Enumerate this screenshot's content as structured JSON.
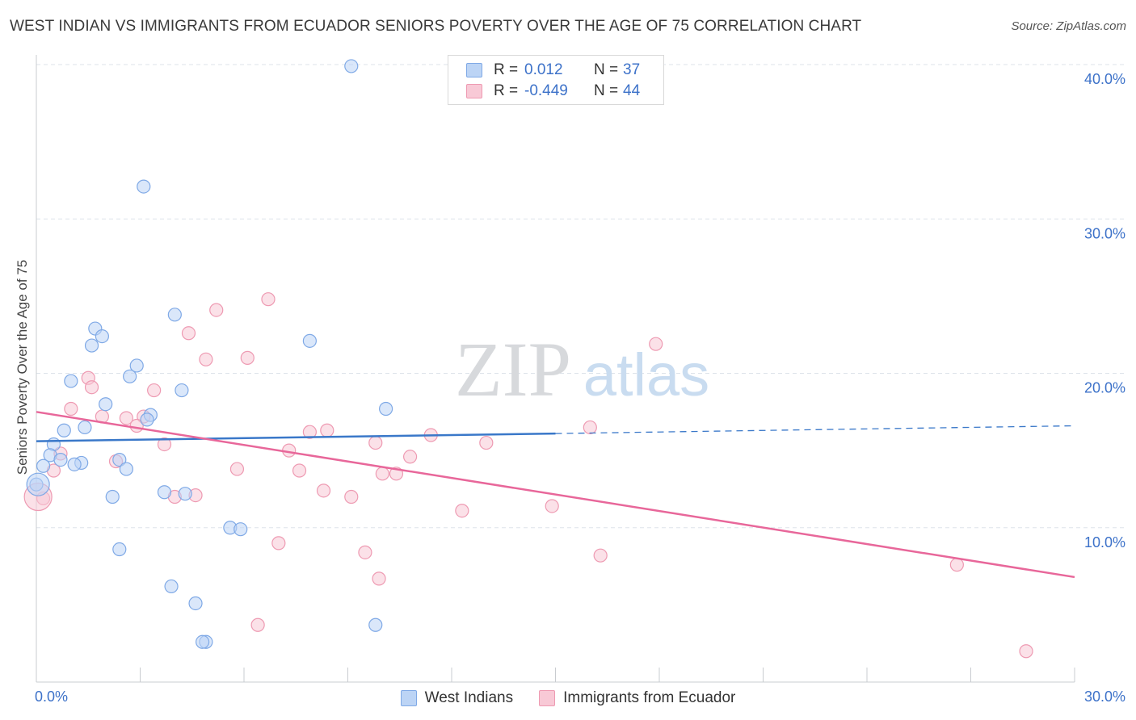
{
  "header": {
    "title": "WEST INDIAN VS IMMIGRANTS FROM ECUADOR SENIORS POVERTY OVER THE AGE OF 75 CORRELATION CHART",
    "source": "Source: ZipAtlas.com"
  },
  "watermark": {
    "zip": "ZIP",
    "atlas": "atlas"
  },
  "legend_top": {
    "r_label": "R =",
    "n_label": "N =",
    "rows": [
      {
        "r": "0.012",
        "n": "37"
      },
      {
        "r": "-0.449",
        "n": "44"
      }
    ]
  },
  "legend_bottom": {
    "items": [
      "West Indians",
      "Immigrants from Ecuador"
    ]
  },
  "colors": {
    "blue_fill": "#bcd4f5",
    "blue_stroke": "#7fa9e6",
    "blue_line": "#3a78c9",
    "pink_fill": "#f8c9d6",
    "pink_stroke": "#ee9ab2",
    "pink_line": "#e8679a",
    "tick_text": "#3d72c9",
    "grid": "#dde3ea"
  },
  "chart_data": {
    "type": "scatter",
    "title": "WEST INDIAN VS IMMIGRANTS FROM ECUADOR SENIORS POVERTY OVER THE AGE OF 75 CORRELATION CHART",
    "xlabel": "",
    "ylabel": "Seniors Poverty Over the Age of 75",
    "xlim": [
      0,
      30
    ],
    "ylim": [
      0,
      40
    ],
    "x_tick_labels": [
      "0.0%",
      "30.0%"
    ],
    "y_ticks": [
      10,
      20,
      30,
      40
    ],
    "y_tick_labels": [
      "10.0%",
      "20.0%",
      "30.0%",
      "40.0%"
    ],
    "series": [
      {
        "name": "West Indians",
        "r": 0.012,
        "n": 37,
        "trend": {
          "x": [
            0,
            15,
            30
          ],
          "y": [
            15.6,
            16.1,
            16.6
          ],
          "solid_until": 15
        },
        "points": [
          {
            "x": 9.1,
            "y": 39.9
          },
          {
            "x": 3.1,
            "y": 32.1
          },
          {
            "x": 4.0,
            "y": 23.8
          },
          {
            "x": 1.7,
            "y": 22.9
          },
          {
            "x": 1.9,
            "y": 22.4
          },
          {
            "x": 1.6,
            "y": 21.8
          },
          {
            "x": 7.9,
            "y": 22.1
          },
          {
            "x": 2.9,
            "y": 20.5
          },
          {
            "x": 2.7,
            "y": 19.8
          },
          {
            "x": 1.0,
            "y": 19.5
          },
          {
            "x": 4.2,
            "y": 18.9
          },
          {
            "x": 2.0,
            "y": 18.0
          },
          {
            "x": 10.1,
            "y": 17.7
          },
          {
            "x": 3.3,
            "y": 17.3
          },
          {
            "x": 3.2,
            "y": 17.0
          },
          {
            "x": 1.4,
            "y": 16.5
          },
          {
            "x": 0.8,
            "y": 16.3
          },
          {
            "x": 0.5,
            "y": 15.4
          },
          {
            "x": 0.4,
            "y": 14.7
          },
          {
            "x": 0.7,
            "y": 14.4
          },
          {
            "x": 1.3,
            "y": 14.2
          },
          {
            "x": 1.1,
            "y": 14.1
          },
          {
            "x": 2.4,
            "y": 14.4
          },
          {
            "x": 2.6,
            "y": 13.8
          },
          {
            "x": 0.2,
            "y": 14.0
          },
          {
            "x": 0.0,
            "y": 12.8
          },
          {
            "x": 3.7,
            "y": 12.3
          },
          {
            "x": 4.3,
            "y": 12.2
          },
          {
            "x": 2.2,
            "y": 12.0
          },
          {
            "x": 5.6,
            "y": 10.0
          },
          {
            "x": 5.9,
            "y": 9.9
          },
          {
            "x": 2.4,
            "y": 8.6
          },
          {
            "x": 3.9,
            "y": 6.2
          },
          {
            "x": 4.6,
            "y": 5.1
          },
          {
            "x": 4.9,
            "y": 2.6
          },
          {
            "x": 4.8,
            "y": 2.6
          },
          {
            "x": 9.8,
            "y": 3.7
          }
        ]
      },
      {
        "name": "Immigrants from Ecuador",
        "r": -0.449,
        "n": 44,
        "trend": {
          "x": [
            0,
            30
          ],
          "y": [
            17.5,
            6.8
          ]
        },
        "points": [
          {
            "x": 6.7,
            "y": 24.8
          },
          {
            "x": 5.2,
            "y": 24.1
          },
          {
            "x": 4.4,
            "y": 22.6
          },
          {
            "x": 17.9,
            "y": 21.9
          },
          {
            "x": 4.9,
            "y": 20.9
          },
          {
            "x": 6.1,
            "y": 21.0
          },
          {
            "x": 1.5,
            "y": 19.7
          },
          {
            "x": 1.6,
            "y": 19.1
          },
          {
            "x": 3.4,
            "y": 18.9
          },
          {
            "x": 1.0,
            "y": 17.7
          },
          {
            "x": 1.9,
            "y": 17.2
          },
          {
            "x": 2.6,
            "y": 17.1
          },
          {
            "x": 3.1,
            "y": 17.2
          },
          {
            "x": 2.9,
            "y": 16.6
          },
          {
            "x": 16.0,
            "y": 16.5
          },
          {
            "x": 7.9,
            "y": 16.2
          },
          {
            "x": 8.4,
            "y": 16.3
          },
          {
            "x": 11.4,
            "y": 16.0
          },
          {
            "x": 3.7,
            "y": 15.4
          },
          {
            "x": 9.8,
            "y": 15.5
          },
          {
            "x": 13.0,
            "y": 15.5
          },
          {
            "x": 7.3,
            "y": 15.0
          },
          {
            "x": 0.7,
            "y": 14.8
          },
          {
            "x": 10.8,
            "y": 14.6
          },
          {
            "x": 2.3,
            "y": 14.3
          },
          {
            "x": 0.5,
            "y": 13.7
          },
          {
            "x": 5.8,
            "y": 13.8
          },
          {
            "x": 7.6,
            "y": 13.7
          },
          {
            "x": 10.0,
            "y": 13.5
          },
          {
            "x": 10.4,
            "y": 13.5
          },
          {
            "x": 8.3,
            "y": 12.4
          },
          {
            "x": 4.0,
            "y": 12.0
          },
          {
            "x": 4.6,
            "y": 12.1
          },
          {
            "x": 9.1,
            "y": 12.0
          },
          {
            "x": 0.2,
            "y": 11.9
          },
          {
            "x": 14.9,
            "y": 11.4
          },
          {
            "x": 12.3,
            "y": 11.1
          },
          {
            "x": 7.0,
            "y": 9.0
          },
          {
            "x": 9.5,
            "y": 8.4
          },
          {
            "x": 16.3,
            "y": 8.2
          },
          {
            "x": 26.6,
            "y": 7.6
          },
          {
            "x": 9.9,
            "y": 6.7
          },
          {
            "x": 6.4,
            "y": 3.7
          },
          {
            "x": 28.6,
            "y": 2.0
          }
        ]
      }
    ]
  }
}
